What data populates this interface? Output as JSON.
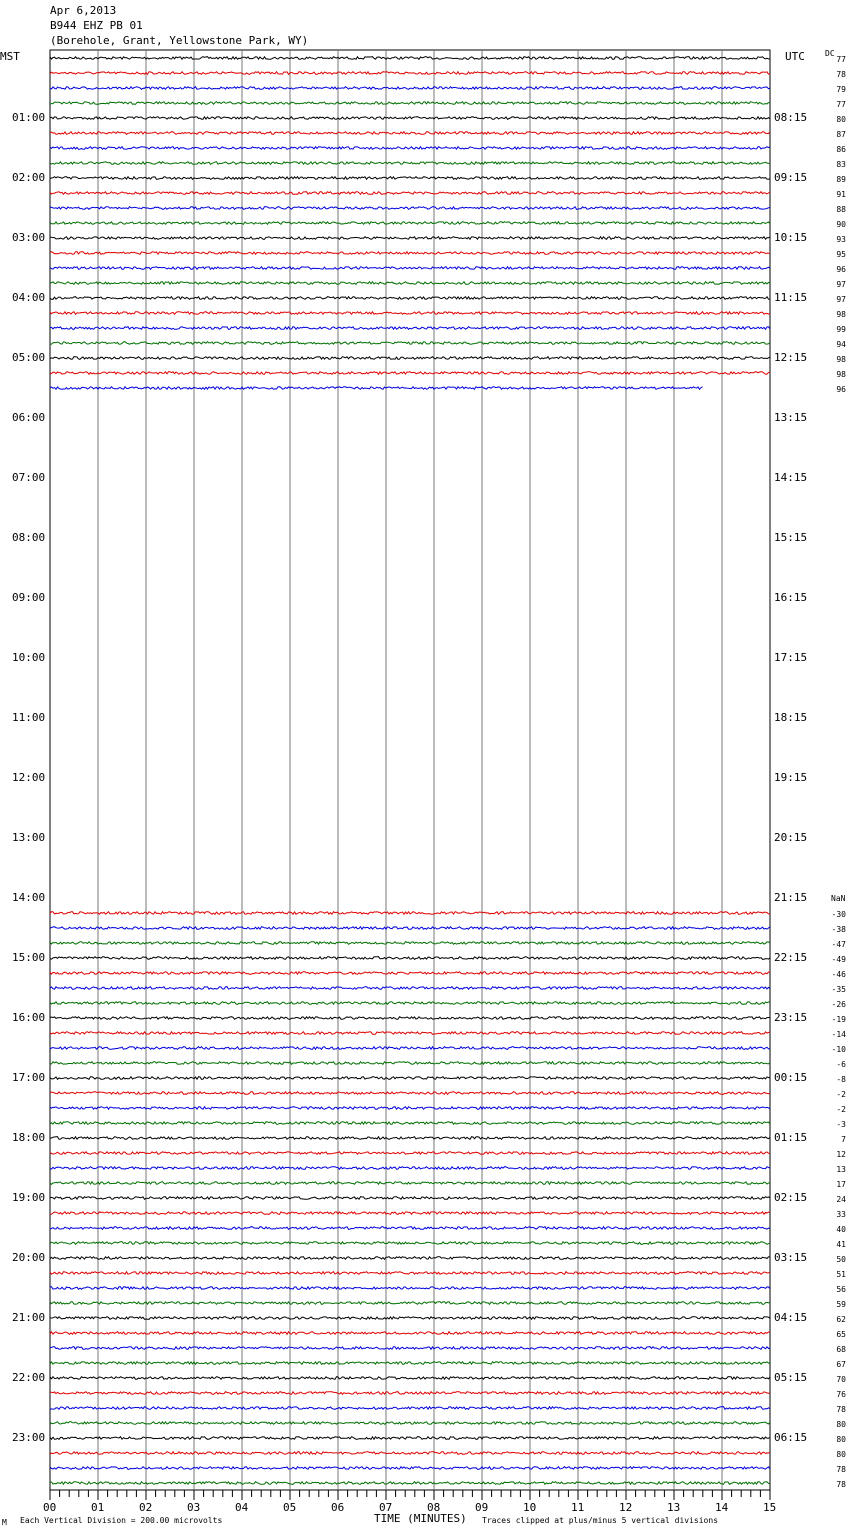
{
  "header": {
    "date": "Apr 6,2013",
    "station": "B944 EHZ PB 01",
    "location": "(Borehole, Grant, Yellowstone Park, WY)",
    "left_tz": "MST",
    "right_tz": "UTC",
    "dc_label": "DC",
    "nan_label": "NaN"
  },
  "footer": {
    "scale_note": "Each Vertical Division =  200.00 microvolts",
    "xlabel": "TIME (MINUTES)",
    "clip_note": "Traces clipped at plus/minus 5 vertical divisions",
    "corner_mark": "M"
  },
  "chart_data": {
    "type": "line",
    "title": "B944 EHZ PB 01 helicorder",
    "xlabel": "TIME (MINUTES)",
    "xlim": [
      0,
      15
    ],
    "x_ticks": [
      "00",
      "01",
      "02",
      "03",
      "04",
      "05",
      "06",
      "07",
      "08",
      "09",
      "10",
      "11",
      "12",
      "13",
      "14",
      "15"
    ],
    "mst_labels": [
      "01:00",
      "02:00",
      "03:00",
      "04:00",
      "05:00",
      "06:00",
      "07:00",
      "08:00",
      "09:00",
      "10:00",
      "11:00",
      "12:00",
      "13:00",
      "14:00",
      "15:00",
      "16:00",
      "17:00",
      "18:00",
      "19:00",
      "20:00",
      "21:00",
      "22:00",
      "23:00"
    ],
    "utc_labels": [
      "08:15",
      "09:15",
      "10:15",
      "11:15",
      "12:15",
      "13:15",
      "14:15",
      "15:15",
      "16:15",
      "17:15",
      "18:15",
      "19:15",
      "20:15",
      "21:15",
      "22:15",
      "23:15",
      "00:15",
      "01:15",
      "02:15",
      "03:15",
      "04:15",
      "05:15",
      "06:15"
    ],
    "series_colors": [
      "#000000",
      "#e00000",
      "#0000e0",
      "#007000"
    ],
    "trace_groups": [
      {
        "first_row": 0,
        "last_row_end_minute": 13.6,
        "dc_offsets": [
          "77",
          "78",
          "79",
          "77",
          "80",
          "87",
          "86",
          "83",
          "89",
          "91",
          "88",
          "90",
          "93",
          "95",
          "96",
          "97",
          "97",
          "98",
          "99",
          "94",
          "98",
          "98",
          "96"
        ]
      },
      {
        "first_row": 57,
        "last_row_end_minute": 15,
        "dc_offsets": [
          "-30",
          "-38",
          "-47",
          "-49",
          "-46",
          "-35",
          "-26",
          "-19",
          "-14",
          "-10",
          "-6",
          "-8",
          "-2",
          "-2",
          "-3",
          "7",
          "12",
          "13",
          "17",
          "24",
          "33",
          "40",
          "41",
          "50",
          "51",
          "56",
          "59",
          "62",
          "65",
          "68",
          "67",
          "70",
          "76",
          "78",
          "80",
          "80",
          "80",
          "78",
          "78"
        ]
      }
    ]
  }
}
